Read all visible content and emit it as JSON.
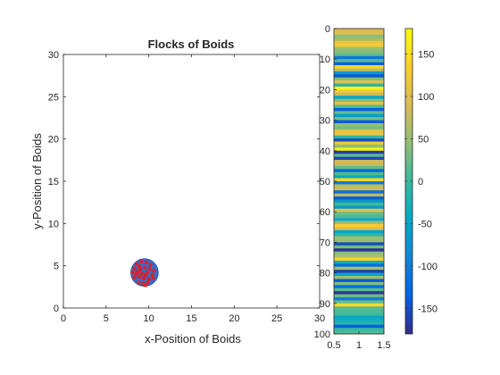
{
  "chart_data": [
    {
      "type": "scatter",
      "title": "Flocks of Boids",
      "xlabel": "x-Position of Boids",
      "ylabel": "y-Position of Boids",
      "xlim": [
        0,
        30
      ],
      "ylim": [
        0,
        30
      ],
      "xticks": [
        0,
        5,
        10,
        15,
        20,
        25,
        30
      ],
      "yticks": [
        0,
        5,
        10,
        15,
        20,
        25,
        30
      ],
      "grid": false,
      "flock": {
        "center": [
          9.5,
          4.2
        ],
        "radius": 1.6,
        "fill": "#3a6bc8",
        "edge": "#2f59b0"
      },
      "boid_color": "#d4232f",
      "series": [
        {
          "values": [
            [
              8.6,
              5.2
            ],
            [
              9.1,
              5.5
            ],
            [
              9.7,
              5.4
            ],
            [
              10.2,
              5.1
            ],
            [
              8.3,
              4.7
            ],
            [
              8.9,
              4.9
            ],
            [
              9.5,
              4.8
            ],
            [
              10.1,
              4.6
            ],
            [
              10.6,
              4.4
            ],
            [
              8.1,
              4.2
            ],
            [
              8.7,
              4.3
            ],
            [
              9.2,
              4.1
            ],
            [
              9.8,
              4.2
            ],
            [
              10.4,
              3.9
            ],
            [
              8.3,
              3.6
            ],
            [
              8.9,
              3.7
            ],
            [
              9.4,
              3.5
            ],
            [
              10.0,
              3.4
            ],
            [
              10.5,
              3.5
            ],
            [
              8.8,
              3.0
            ],
            [
              9.3,
              2.9
            ],
            [
              9.9,
              3.0
            ],
            [
              9.6,
              2.7
            ],
            [
              9.0,
              4.6
            ],
            [
              9.6,
              3.9
            ],
            [
              8.5,
              4.0
            ]
          ]
        }
      ]
    },
    {
      "type": "heatmap",
      "colormap": "parula",
      "xlim": [
        0.5,
        1.5
      ],
      "ylim": [
        0,
        100
      ],
      "xticks": [
        "0.5",
        "1",
        "1.5"
      ],
      "yticks": [
        0,
        10,
        20,
        30,
        40,
        50,
        60,
        70,
        80,
        90,
        100
      ],
      "y_direction": "reverse",
      "values": [
        92,
        98,
        40,
        56,
        112,
        128,
        47,
        40,
        23,
        -106,
        15,
        -137,
        143,
        77,
        -63,
        -144,
        36,
        104,
        -12,
        174,
        126,
        81,
        -46,
        39,
        103,
        12,
        -136,
        22,
        -60,
        32,
        -139,
        46,
        31,
        109,
        118,
        -8,
        -152,
        119,
        42,
        171,
        -165,
        17,
        -158,
        83,
        81,
        22,
        -130,
        13,
        -41,
        142,
        -103,
        74,
        87,
        -122,
        73,
        -141,
        -69,
        4,
        -61,
        106,
        28,
        11,
        -34,
        48,
        131,
        95,
        -44,
        -10,
        48,
        48,
        -152,
        28,
        -174,
        41,
        57,
        141,
        -33,
        -119,
        62,
        -163,
        -49,
        54,
        -141,
        38,
        -122,
        14,
        -170,
        27,
        -100,
        24,
        145,
        18,
        10,
        6,
        -49,
        -31,
        -18,
        -137,
        -5,
        12
      ],
      "colorbar": {
        "clim": [
          -180,
          180
        ],
        "ticks": [
          150,
          100,
          50,
          0,
          -50,
          -100,
          -150
        ]
      }
    }
  ]
}
